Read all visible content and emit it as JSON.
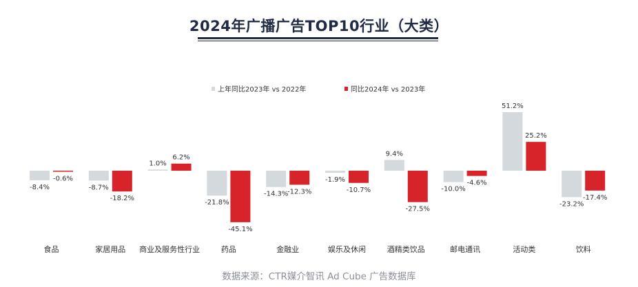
{
  "title": "2024年广播广告TOP10行业（大类）",
  "source": "数据来源：CTR媒介智讯 Ad Cube 广告数据库",
  "colors": {
    "series_2023": "#d3d9dc",
    "series_2024": "#d6242a",
    "text": "#333333",
    "title": "#1f2a44"
  },
  "chart_data": {
    "type": "bar",
    "title": "2024年广播广告TOP10行业（大类）",
    "xlabel": "",
    "ylabel": "",
    "unit": "%",
    "legend_position": "top",
    "grid": false,
    "categories": [
      "食品",
      "家居用品",
      "商业及服务性行业",
      "药品",
      "金融业",
      "娱乐及休闲",
      "酒精类饮品",
      "邮电通讯",
      "活动类",
      "饮料"
    ],
    "series": [
      {
        "name": "上年同比2023年 vs 2022年",
        "values": [
          -8.4,
          -8.7,
          1.0,
          -21.8,
          -14.3,
          -1.9,
          9.4,
          -10.0,
          51.2,
          -23.2
        ]
      },
      {
        "name": "同比2024年 vs 2023年",
        "values": [
          -0.6,
          -18.2,
          6.2,
          -45.1,
          -12.3,
          -10.7,
          -27.5,
          -4.6,
          25.2,
          -17.4
        ]
      }
    ],
    "data_labels": [
      [
        "-8.4%",
        "-8.7%",
        "1.0%",
        "-21.8%",
        "-14.3%",
        "-1.9%",
        "9.4%",
        "-10.0%",
        "51.2%",
        "-23.2%"
      ],
      [
        "-0.6%",
        "-18.2%",
        "6.2%",
        "-45.1%",
        "-12.3%",
        "-10.7%",
        "-27.5%",
        "-4.6%",
        "25.2%",
        "-17.4%"
      ]
    ]
  }
}
